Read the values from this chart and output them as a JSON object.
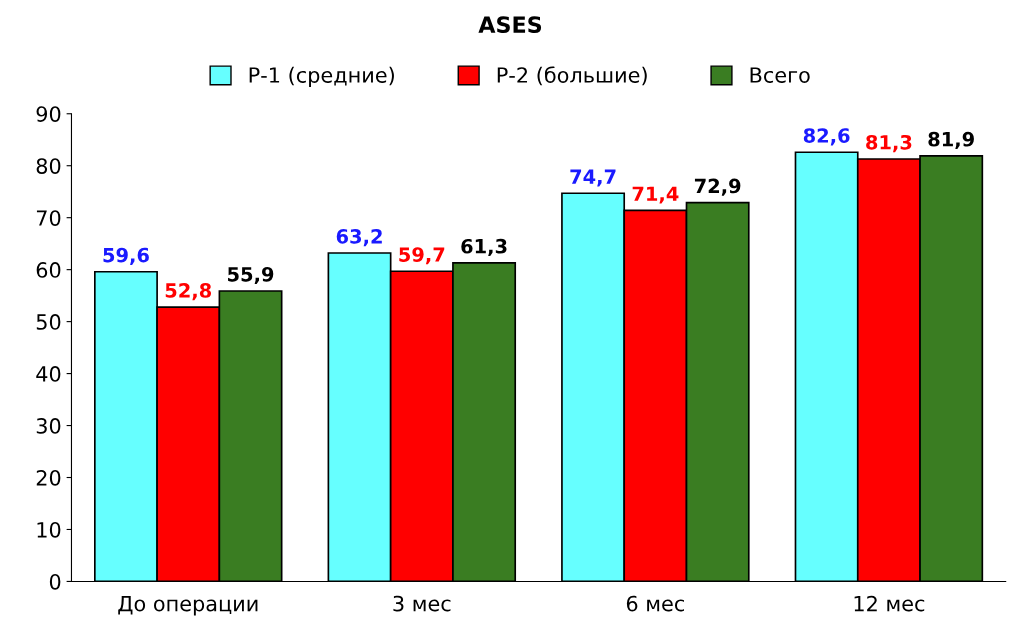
{
  "chart_data": {
    "type": "bar",
    "title": "ASES",
    "categories": [
      "До операции",
      "3 мес",
      "6 мес",
      "12 мес"
    ],
    "series": [
      {
        "name": "Р-1 (средние)",
        "color": "#66ffff",
        "values": [
          59.6,
          63.2,
          74.7,
          82.6
        ],
        "value_labels": [
          "59,6",
          "63,2",
          "74,7",
          "82,6"
        ]
      },
      {
        "name": "Р-2 (большие)",
        "color": "#ff0000",
        "values": [
          52.8,
          59.7,
          71.4,
          81.3
        ],
        "value_labels": [
          "52,8",
          "59,7",
          "71,4",
          "81,3"
        ]
      },
      {
        "name": "Всего",
        "color": "#3a7d22",
        "values": [
          55.9,
          61.3,
          72.9,
          81.9
        ],
        "value_labels": [
          "55,9",
          "61,3",
          "72,9",
          "81,9"
        ]
      }
    ],
    "ylim": [
      0,
      90
    ],
    "yticks": [
      0,
      10,
      20,
      30,
      40,
      50,
      60,
      70,
      80,
      90
    ],
    "grid": false,
    "legend": "top"
  }
}
